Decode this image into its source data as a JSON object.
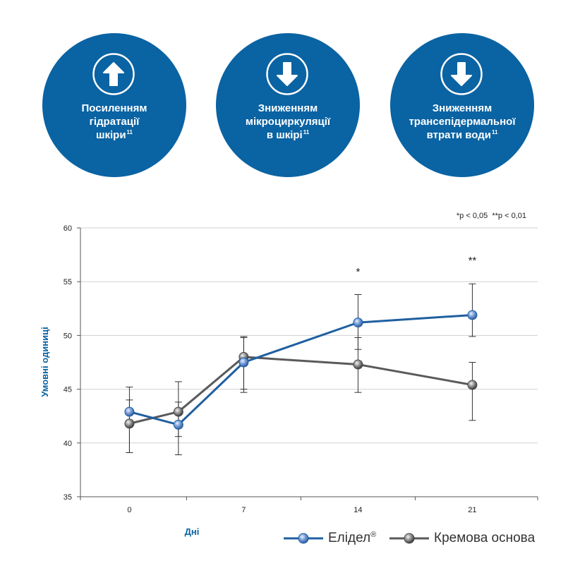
{
  "circles": [
    {
      "direction": "up",
      "lines": [
        "Посиленням",
        "гідратації",
        "шкіри"
      ],
      "sup": "11"
    },
    {
      "direction": "down",
      "lines": [
        "Зниженням",
        "мікроциркуляції",
        "в шкірі"
      ],
      "sup": "11"
    },
    {
      "direction": "down",
      "lines": [
        "Зниженням",
        "трансепідермальної",
        "втрати води"
      ],
      "sup": "11"
    }
  ],
  "colors": {
    "brand": "#0a63a3",
    "elidel": "#1f5fa0",
    "base": "#5a5a5a",
    "grid": "#d0d0d0"
  },
  "significance_note": "*p < 0,05  **p < 0,01",
  "chart_data": {
    "type": "line",
    "xlabel": "Дні",
    "ylabel": "Умовні одиниці",
    "x_ticks": [
      0,
      7,
      14,
      21
    ],
    "x_range": [
      -3,
      25
    ],
    "ylim": [
      35,
      60
    ],
    "y_ticks": [
      35,
      40,
      45,
      50,
      55,
      60
    ],
    "grid": true,
    "series": [
      {
        "name": "Елідел",
        "name_sup": "®",
        "x": [
          0,
          3,
          7,
          14,
          21
        ],
        "values": [
          42.9,
          41.7,
          47.5,
          51.2,
          51.9
        ],
        "err_low": [
          3.8,
          2.8,
          2.5,
          2.5,
          2.0
        ],
        "err_high": [
          2.3,
          2.1,
          2.3,
          2.6,
          2.9
        ]
      },
      {
        "name": "Кремова основа",
        "x": [
          0,
          3,
          7,
          14,
          21
        ],
        "values": [
          41.8,
          42.9,
          48.0,
          47.3,
          45.4
        ],
        "err_low": [
          2.7,
          2.3,
          3.3,
          2.6,
          3.3
        ],
        "err_high": [
          2.2,
          2.8,
          1.9,
          2.5,
          2.1
        ]
      }
    ],
    "annotations": [
      {
        "x": 14,
        "text": "*"
      },
      {
        "x": 21,
        "text": "**"
      }
    ]
  }
}
